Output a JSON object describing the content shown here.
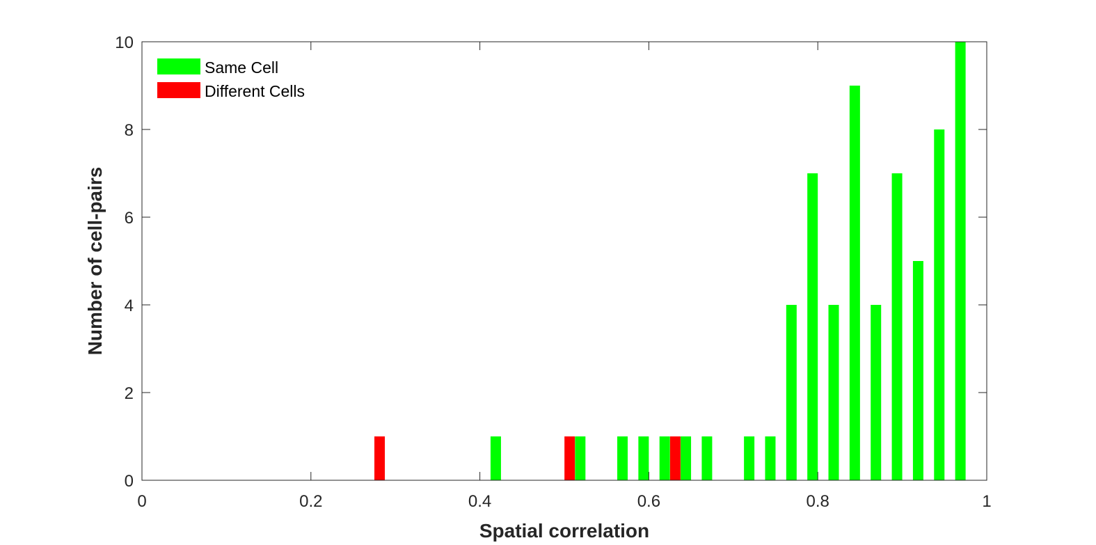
{
  "chart_data": {
    "type": "bar",
    "xlabel": "Spatial correlation",
    "ylabel": "Number of cell-pairs",
    "xlim": [
      0,
      1
    ],
    "ylim": [
      0,
      10
    ],
    "xticks": [
      "0",
      "0.2",
      "0.4",
      "0.6",
      "0.8",
      "1"
    ],
    "yticks": [
      "0",
      "2",
      "4",
      "6",
      "8",
      "10"
    ],
    "grid": false,
    "legend_position": "top-left",
    "bin_width": 0.025,
    "series": [
      {
        "name": "Same Cell",
        "color": "#00ff00",
        "x": [
          0.4188,
          0.5188,
          0.5688,
          0.5938,
          0.6188,
          0.6438,
          0.6688,
          0.7188,
          0.7438,
          0.7688,
          0.7938,
          0.8188,
          0.8438,
          0.8688,
          0.8938,
          0.9188,
          0.9438,
          0.9688
        ],
        "values": [
          1,
          1,
          1,
          1,
          1,
          1,
          1,
          1,
          1,
          4,
          7,
          4,
          9,
          4,
          7,
          5,
          8,
          10
        ]
      },
      {
        "name": "Different Cells",
        "color": "#ff0000",
        "x": [
          0.2813,
          0.5063,
          0.6313
        ],
        "values": [
          1,
          1,
          1
        ]
      }
    ]
  }
}
